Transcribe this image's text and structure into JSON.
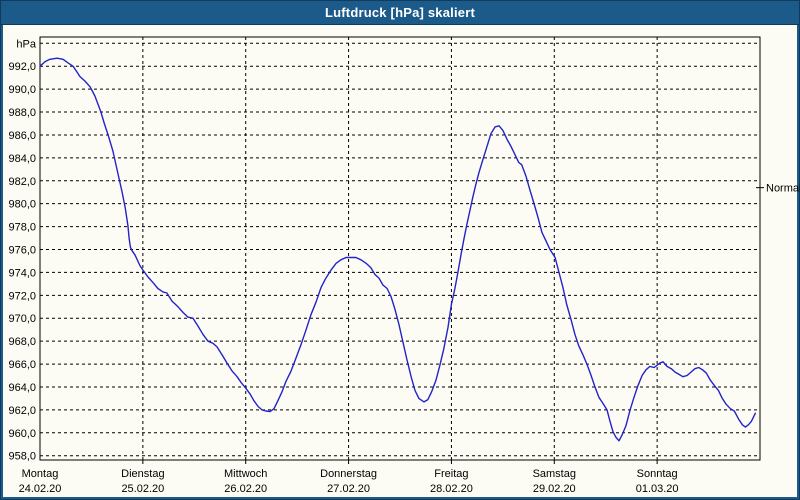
{
  "window": {
    "title": "Luftdruck [hPa] skaliert"
  },
  "colors": {
    "titlebar_bg": "#1c5a8a",
    "frame": "#1c5a8a",
    "outer_border": "#0f3c5e",
    "content_bg": "#fcfcf4",
    "grid": "#000000",
    "plot_border": "#000000",
    "curve": "#2323c8",
    "text": "#000000",
    "title_text": "#ffffff"
  },
  "chart_data": {
    "type": "line",
    "title": "Luftdruck [hPa] skaliert",
    "y_axis": {
      "unit_label": "hPa",
      "tick_values": [
        992,
        990,
        988,
        986,
        984,
        982,
        980,
        978,
        976,
        974,
        972,
        970,
        968,
        966,
        964,
        962,
        960,
        958
      ],
      "grid_min": 958,
      "grid_max": 994,
      "grid_step": 2,
      "tick_label_format": "comma-decimal",
      "ylim": [
        957.6,
        994.6
      ]
    },
    "x_axis": {
      "hours_total": 168,
      "day_tick_hours": [
        0,
        24,
        48,
        72,
        96,
        120,
        144
      ],
      "days": [
        {
          "name": "Montag",
          "date": "24.02.20"
        },
        {
          "name": "Dienstag",
          "date": "25.02.20"
        },
        {
          "name": "Mittwoch",
          "date": "26.02.20"
        },
        {
          "name": "Donnerstag",
          "date": "27.02.20"
        },
        {
          "name": "Freitag",
          "date": "28.02.20"
        },
        {
          "name": "Samstag",
          "date": "29.02.20"
        },
        {
          "name": "Sonntag",
          "date": "01.03.20"
        }
      ]
    },
    "normal_marker": {
      "label": "Normal",
      "value_hpa": 981.4
    },
    "grid": "dashed",
    "legend": "none",
    "series": [
      {
        "name": "Luftdruck",
        "color": "#2323c8",
        "points_unit": [
          "hours_since_monday_00",
          "hPa"
        ],
        "points": [
          [
            0,
            992.0
          ],
          [
            1.2,
            992.4
          ],
          [
            2.3,
            992.6
          ],
          [
            4,
            992.7
          ],
          [
            5.4,
            992.6
          ],
          [
            6.5,
            992.3
          ],
          [
            7.7,
            992.0
          ],
          [
            8.6,
            991.5
          ],
          [
            9.3,
            991.1
          ],
          [
            10.5,
            990.7
          ],
          [
            11.7,
            990.2
          ],
          [
            12.8,
            989.4
          ],
          [
            14.2,
            988.0
          ],
          [
            15,
            987.0
          ],
          [
            15.9,
            986.0
          ],
          [
            17,
            984.6
          ],
          [
            18.2,
            982.6
          ],
          [
            19.1,
            981.1
          ],
          [
            19.9,
            979.6
          ],
          [
            20.5,
            978.1
          ],
          [
            20.8,
            977.0
          ],
          [
            21.1,
            976.2
          ],
          [
            21.5,
            975.9
          ],
          [
            22.2,
            975.5
          ],
          [
            23.3,
            974.6
          ],
          [
            24,
            974.2
          ],
          [
            25.2,
            973.6
          ],
          [
            26.4,
            973.1
          ],
          [
            27.5,
            972.6
          ],
          [
            28.7,
            972.3
          ],
          [
            29.6,
            972.2
          ],
          [
            30.8,
            971.5
          ],
          [
            32.2,
            971.0
          ],
          [
            33.4,
            970.5
          ],
          [
            34.5,
            970.1
          ],
          [
            35.7,
            970.0
          ],
          [
            36.9,
            969.3
          ],
          [
            38,
            968.6
          ],
          [
            39.2,
            968.0
          ],
          [
            40.4,
            967.8
          ],
          [
            41.3,
            967.5
          ],
          [
            42.5,
            966.8
          ],
          [
            43.6,
            966.1
          ],
          [
            44.8,
            965.4
          ],
          [
            46,
            964.9
          ],
          [
            46.9,
            964.4
          ],
          [
            48,
            963.9
          ],
          [
            49,
            963.4
          ],
          [
            49.9,
            962.8
          ],
          [
            50.9,
            962.3
          ],
          [
            51.8,
            962.0
          ],
          [
            52.7,
            961.9
          ],
          [
            53.7,
            961.85
          ],
          [
            54.6,
            962.1
          ],
          [
            55.5,
            962.8
          ],
          [
            56.5,
            963.6
          ],
          [
            57.4,
            964.5
          ],
          [
            58.6,
            965.4
          ],
          [
            59.7,
            966.5
          ],
          [
            60.9,
            967.7
          ],
          [
            62.1,
            969.0
          ],
          [
            63.2,
            970.3
          ],
          [
            64.4,
            971.4
          ],
          [
            65.6,
            972.7
          ],
          [
            66.7,
            973.5
          ],
          [
            67.9,
            974.2
          ],
          [
            69.1,
            974.8
          ],
          [
            70.2,
            975.1
          ],
          [
            71.4,
            975.3
          ],
          [
            72.6,
            975.3
          ],
          [
            73.7,
            975.3
          ],
          [
            74.9,
            975.1
          ],
          [
            76.1,
            974.8
          ],
          [
            77.2,
            974.4
          ],
          [
            78.2,
            973.8
          ],
          [
            79.1,
            973.5
          ],
          [
            80,
            972.9
          ],
          [
            81,
            972.6
          ],
          [
            81.9,
            971.9
          ],
          [
            82.8,
            970.8
          ],
          [
            83.8,
            969.4
          ],
          [
            84.7,
            967.9
          ],
          [
            85.6,
            966.4
          ],
          [
            86.6,
            964.9
          ],
          [
            87.5,
            963.7
          ],
          [
            88.4,
            963.0
          ],
          [
            89.6,
            962.7
          ],
          [
            90.5,
            962.9
          ],
          [
            91.4,
            963.6
          ],
          [
            92.4,
            964.6
          ],
          [
            93.3,
            965.9
          ],
          [
            94.2,
            967.3
          ],
          [
            95.2,
            969.2
          ],
          [
            96,
            971.2
          ],
          [
            96.8,
            972.6
          ],
          [
            97.5,
            974.0
          ],
          [
            98.2,
            975.5
          ],
          [
            98.9,
            976.9
          ],
          [
            99.6,
            978.2
          ],
          [
            100.3,
            979.4
          ],
          [
            101,
            980.6
          ],
          [
            101.7,
            981.7
          ],
          [
            102.4,
            982.7
          ],
          [
            103.3,
            983.8
          ],
          [
            104.3,
            985.0
          ],
          [
            105.2,
            986.1
          ],
          [
            106.2,
            986.7
          ],
          [
            107.1,
            986.8
          ],
          [
            108,
            986.4
          ],
          [
            109,
            985.6
          ],
          [
            109.9,
            985.0
          ],
          [
            110.8,
            984.3
          ],
          [
            111.7,
            983.6
          ],
          [
            112.4,
            983.4
          ],
          [
            113.4,
            982.4
          ],
          [
            114.3,
            981.2
          ],
          [
            115.2,
            980.1
          ],
          [
            116.2,
            978.8
          ],
          [
            117.1,
            977.5
          ],
          [
            118,
            976.8
          ],
          [
            119,
            976.0
          ],
          [
            120.2,
            975.3
          ],
          [
            121.1,
            974.0
          ],
          [
            122,
            972.7
          ],
          [
            122.9,
            971.2
          ],
          [
            123.9,
            969.9
          ],
          [
            124.8,
            968.6
          ],
          [
            125.7,
            967.6
          ],
          [
            126.7,
            966.8
          ],
          [
            127.6,
            966.0
          ],
          [
            128.5,
            965.1
          ],
          [
            129.5,
            964.0
          ],
          [
            130.4,
            963.1
          ],
          [
            131.3,
            962.6
          ],
          [
            132.3,
            962.0
          ],
          [
            133,
            961.0
          ],
          [
            133.7,
            960.1
          ],
          [
            134.4,
            959.6
          ],
          [
            135.1,
            959.3
          ],
          [
            135.8,
            959.8
          ],
          [
            136.7,
            960.6
          ],
          [
            137.7,
            962.0
          ],
          [
            138.6,
            963.1
          ],
          [
            139.5,
            964.1
          ],
          [
            140.5,
            965.0
          ],
          [
            141.4,
            965.5
          ],
          [
            142.3,
            965.8
          ],
          [
            143.3,
            965.7
          ],
          [
            144,
            965.9
          ],
          [
            144.7,
            966.1
          ],
          [
            145.4,
            966.2
          ],
          [
            146.3,
            965.8
          ],
          [
            147.3,
            965.6
          ],
          [
            148.2,
            965.3
          ],
          [
            149.1,
            965.1
          ],
          [
            150,
            964.9
          ],
          [
            151,
            965.0
          ],
          [
            151.9,
            965.3
          ],
          [
            152.8,
            965.6
          ],
          [
            153.7,
            965.7
          ],
          [
            154.6,
            965.5
          ],
          [
            155.5,
            965.2
          ],
          [
            156.4,
            964.6
          ],
          [
            157.4,
            964.1
          ],
          [
            158.3,
            963.7
          ],
          [
            159.2,
            963.0
          ],
          [
            160.1,
            962.5
          ],
          [
            161.1,
            962.1
          ],
          [
            162,
            961.9
          ],
          [
            163,
            961.2
          ],
          [
            163.9,
            960.7
          ],
          [
            164.6,
            960.5
          ],
          [
            165.3,
            960.7
          ],
          [
            166,
            961.0
          ],
          [
            166.9,
            961.7
          ]
        ]
      }
    ]
  }
}
